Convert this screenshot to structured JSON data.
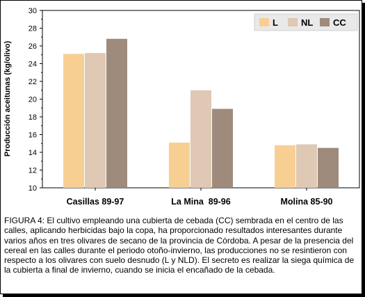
{
  "chart_data": {
    "type": "bar",
    "ylabel": "Producción aceitunas (kg/olivo)",
    "xlabel": "",
    "ylim": [
      10,
      30
    ],
    "yticks": [
      10,
      12,
      14,
      16,
      18,
      20,
      22,
      24,
      26,
      28,
      30
    ],
    "grid": false,
    "legend_position": "top-right",
    "categories": [
      "Casillas 89-97",
      "La Mina  89-96",
      "Molina 85-90"
    ],
    "series": [
      {
        "name": "L",
        "color": "#f8cf93",
        "values": [
          25.1,
          15.1,
          14.8
        ]
      },
      {
        "name": "NL",
        "color": "#dfc8b4",
        "values": [
          25.2,
          21.0,
          14.9
        ]
      },
      {
        "name": "CC",
        "color": "#9e8b7c",
        "values": [
          26.8,
          18.9,
          14.5
        ]
      }
    ]
  },
  "caption": "FIGURA 4: El cultivo empleando una cubierta de cebada (CC) sembrada en el centro de las calles, aplicando herbicidas bajo la copa, ha proporcionado resultados interesantes durante varios años en tres olivares de secano de la provincia de Córdoba. A pesar de la presencia del cereal en las calles durante el periodo otoño-invierno, las producciones no se resintieron con respecto a los olivares con suelo desnudo (L y NLD). El secreto es realizar la siega química de la cubierta a final de invierno, cuando se inicia el encañado de la cebada."
}
